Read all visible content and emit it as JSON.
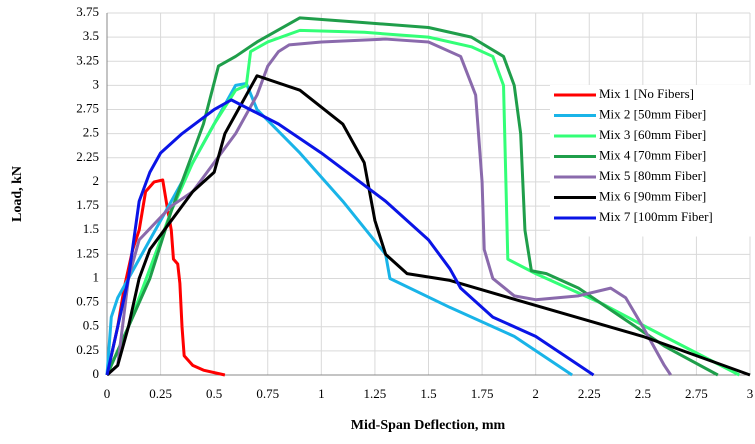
{
  "chart_data": {
    "type": "line",
    "xlabel": "Mid-Span Deflection, mm",
    "ylabel": "Load, kN",
    "xlim": [
      0,
      3
    ],
    "xticks": [
      0,
      0.25,
      0.5,
      0.75,
      1,
      1.25,
      1.5,
      1.75,
      2,
      2.25,
      2.5,
      2.75,
      3
    ],
    "ylim": [
      0,
      3.75
    ],
    "yticks": [
      0,
      0.25,
      0.5,
      0.75,
      1,
      1.25,
      1.5,
      1.75,
      2,
      2.25,
      2.5,
      2.75,
      3,
      3.25,
      3.5,
      3.75
    ],
    "grid": true,
    "legend": "upper right",
    "series": [
      {
        "name": "Mix 1 [No Fibers]",
        "color": "#ff0000",
        "x": [
          0,
          0.05,
          0.08,
          0.12,
          0.15,
          0.18,
          0.22,
          0.26,
          0.28,
          0.3,
          0.31,
          0.33,
          0.34,
          0.35,
          0.36,
          0.4,
          0.45,
          0.55
        ],
        "values": [
          0,
          0.5,
          0.9,
          1.3,
          1.5,
          1.9,
          2.0,
          2.02,
          1.75,
          1.5,
          1.2,
          1.15,
          0.95,
          0.5,
          0.2,
          0.1,
          0.05,
          0
        ]
      },
      {
        "name": "Mix 2 [50mm Fiber]",
        "color": "#19b4e8",
        "x": [
          0,
          0.02,
          0.05,
          0.1,
          0.15,
          0.2,
          0.3,
          0.4,
          0.5,
          0.6,
          0.65,
          0.7,
          0.9,
          1.1,
          1.3,
          1.32,
          1.6,
          1.9,
          2.17
        ],
        "values": [
          0,
          0.6,
          0.8,
          1.0,
          1.2,
          1.4,
          1.8,
          2.2,
          2.6,
          3.0,
          3.02,
          2.75,
          2.3,
          1.8,
          1.25,
          1.0,
          0.7,
          0.4,
          0
        ]
      },
      {
        "name": "Mix 3 [60mm Fiber]",
        "color": "#33ff77",
        "x": [
          0,
          0.1,
          0.2,
          0.3,
          0.4,
          0.5,
          0.6,
          0.65,
          0.67,
          0.75,
          0.9,
          1.2,
          1.5,
          1.7,
          1.8,
          1.85,
          1.87,
          2.0,
          2.3,
          2.6,
          2.95
        ],
        "values": [
          0,
          0.5,
          1.1,
          1.7,
          2.2,
          2.6,
          2.95,
          3.0,
          3.35,
          3.45,
          3.57,
          3.55,
          3.5,
          3.4,
          3.3,
          3.0,
          1.2,
          1.05,
          0.75,
          0.4,
          0
        ]
      },
      {
        "name": "Mix 4 [70mm Fiber]",
        "color": "#1f9e4a",
        "x": [
          0,
          0.1,
          0.2,
          0.3,
          0.4,
          0.45,
          0.52,
          0.6,
          0.7,
          0.9,
          1.2,
          1.5,
          1.7,
          1.85,
          1.9,
          1.93,
          1.95,
          1.98,
          2.05,
          2.2,
          2.4,
          2.6,
          2.85
        ],
        "values": [
          0,
          0.5,
          1.0,
          1.7,
          2.3,
          2.6,
          3.2,
          3.3,
          3.45,
          3.7,
          3.65,
          3.6,
          3.5,
          3.3,
          3.0,
          2.5,
          1.5,
          1.08,
          1.05,
          0.9,
          0.6,
          0.3,
          0
        ]
      },
      {
        "name": "Mix 5 [80mm Fiber]",
        "color": "#8a6aac",
        "x": [
          0,
          0.05,
          0.1,
          0.15,
          0.3,
          0.4,
          0.5,
          0.6,
          0.7,
          0.75,
          0.8,
          0.85,
          1.0,
          1.3,
          1.5,
          1.65,
          1.72,
          1.75,
          1.76,
          1.8,
          1.9,
          2.0,
          2.2,
          2.35,
          2.42,
          2.5,
          2.6,
          2.63
        ],
        "values": [
          0,
          0.1,
          1.0,
          1.4,
          1.75,
          1.9,
          2.2,
          2.5,
          2.9,
          3.2,
          3.35,
          3.42,
          3.45,
          3.48,
          3.45,
          3.3,
          2.9,
          2.0,
          1.3,
          1.0,
          0.82,
          0.78,
          0.82,
          0.9,
          0.8,
          0.5,
          0.1,
          0
        ]
      },
      {
        "name": "Mix 6 [90mm Fiber]",
        "color": "#000000",
        "x": [
          0,
          0.05,
          0.1,
          0.15,
          0.2,
          0.3,
          0.4,
          0.5,
          0.55,
          0.6,
          0.65,
          0.7,
          0.9,
          1.1,
          1.2,
          1.25,
          1.3,
          1.4,
          1.6,
          2.0,
          2.5,
          3.0
        ],
        "values": [
          0,
          0.1,
          0.5,
          1.0,
          1.3,
          1.6,
          1.9,
          2.1,
          2.5,
          2.7,
          2.9,
          3.1,
          2.95,
          2.6,
          2.2,
          1.6,
          1.25,
          1.05,
          0.98,
          0.72,
          0.4,
          0
        ]
      },
      {
        "name": "Mix 7 [100mm Fiber]",
        "color": "#0a14e6",
        "x": [
          0,
          0.05,
          0.1,
          0.15,
          0.2,
          0.25,
          0.35,
          0.5,
          0.58,
          0.8,
          1.0,
          1.3,
          1.5,
          1.6,
          1.65,
          1.8,
          2.0,
          2.27
        ],
        "values": [
          0,
          0.5,
          1.0,
          1.8,
          2.1,
          2.3,
          2.5,
          2.75,
          2.85,
          2.6,
          2.3,
          1.8,
          1.4,
          1.1,
          0.9,
          0.6,
          0.4,
          0
        ]
      }
    ]
  }
}
